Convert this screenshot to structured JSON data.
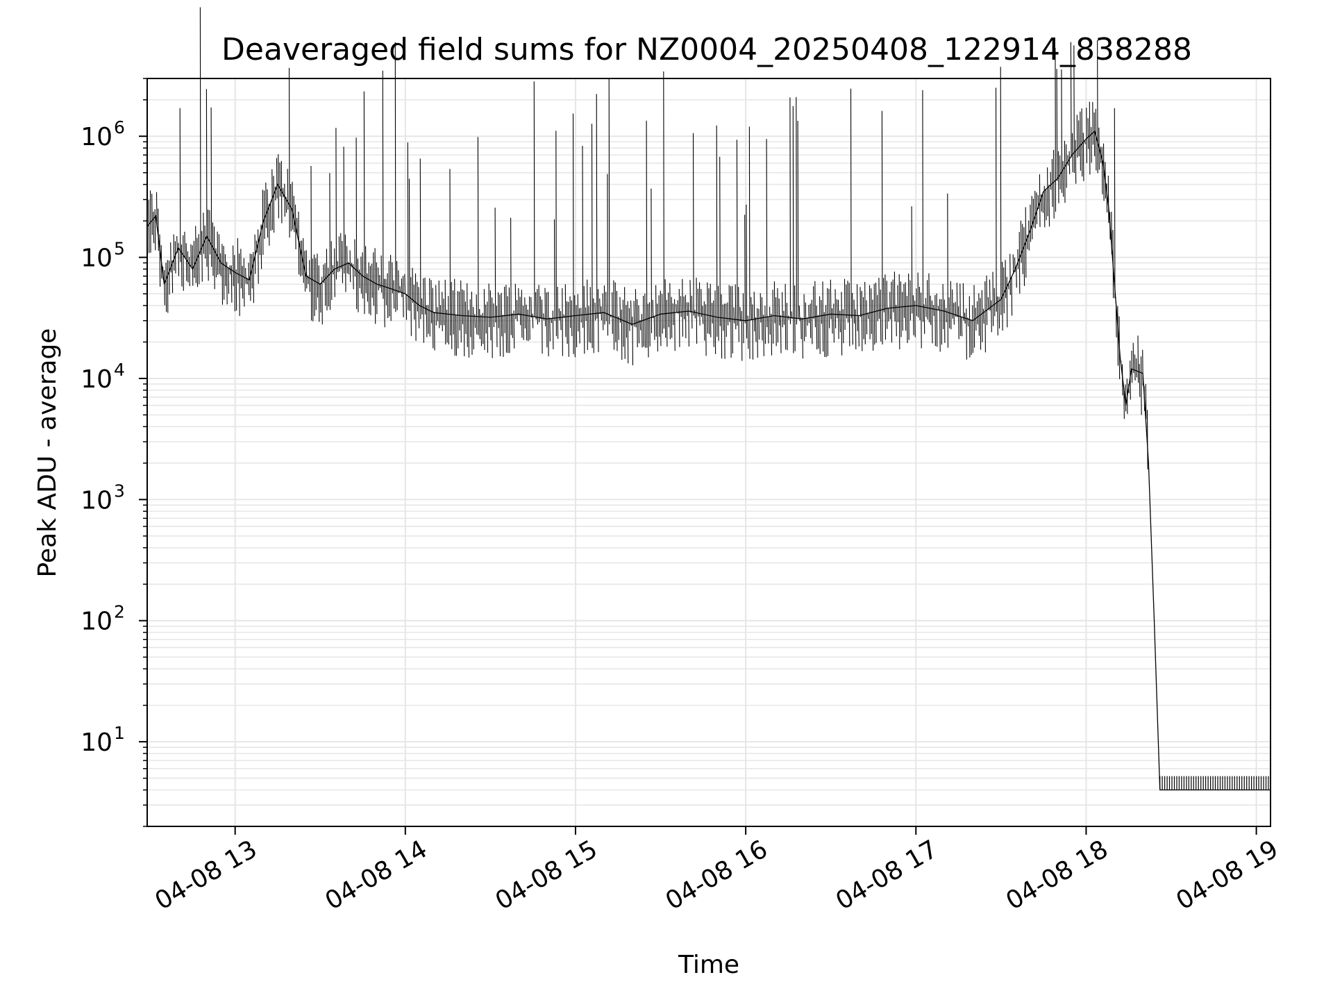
{
  "chart_data": {
    "type": "line",
    "title": "Deaveraged field sums for NZ0004_20250408_122914_838288",
    "xlabel": "Time",
    "ylabel": "Peak ADU - average",
    "yscale": "log",
    "xlim": [
      "04-08 12:29",
      "04-08 19:05"
    ],
    "ylim": [
      2,
      3000000
    ],
    "x_ticks": [
      "04-08 13",
      "04-08 14",
      "04-08 15",
      "04-08 16",
      "04-08 17",
      "04-08 18",
      "04-08 19"
    ],
    "y_ticks": [
      {
        "base": "10",
        "exp": "1",
        "value": 10
      },
      {
        "base": "10",
        "exp": "2",
        "value": 100
      },
      {
        "base": "10",
        "exp": "3",
        "value": 1000
      },
      {
        "base": "10",
        "exp": "4",
        "value": 10000
      },
      {
        "base": "10",
        "exp": "5",
        "value": 100000
      },
      {
        "base": "10",
        "exp": "6",
        "value": 1000000
      }
    ],
    "grid": "major and minor",
    "series": [
      {
        "color": "#000000",
        "points": [
          [
            "04-08 12:29",
            180000
          ],
          [
            "04-08 12:32",
            220000
          ],
          [
            "04-08 12:35",
            60000
          ],
          [
            "04-08 12:40",
            120000
          ],
          [
            "04-08 12:45",
            80000
          ],
          [
            "04-08 12:50",
            150000
          ],
          [
            "04-08 12:55",
            90000
          ],
          [
            "04-08 13:00",
            75000
          ],
          [
            "04-08 13:05",
            65000
          ],
          [
            "04-08 13:10",
            200000
          ],
          [
            "04-08 13:15",
            400000
          ],
          [
            "04-08 13:20",
            250000
          ],
          [
            "04-08 13:25",
            70000
          ],
          [
            "04-08 13:30",
            60000
          ],
          [
            "04-08 13:35",
            80000
          ],
          [
            "04-08 13:40",
            90000
          ],
          [
            "04-08 13:45",
            70000
          ],
          [
            "04-08 13:50",
            60000
          ],
          [
            "04-08 13:55",
            55000
          ],
          [
            "04-08 14:00",
            50000
          ],
          [
            "04-08 14:05",
            40000
          ],
          [
            "04-08 14:10",
            35000
          ],
          [
            "04-08 14:20",
            33000
          ],
          [
            "04-08 14:30",
            32000
          ],
          [
            "04-08 14:40",
            34000
          ],
          [
            "04-08 14:50",
            31000
          ],
          [
            "04-08 15:00",
            33000
          ],
          [
            "04-08 15:10",
            35000
          ],
          [
            "04-08 15:20",
            28000
          ],
          [
            "04-08 15:30",
            34000
          ],
          [
            "04-08 15:40",
            36000
          ],
          [
            "04-08 15:50",
            32000
          ],
          [
            "04-08 16:00",
            30000
          ],
          [
            "04-08 16:10",
            33000
          ],
          [
            "04-08 16:20",
            31000
          ],
          [
            "04-08 16:30",
            34000
          ],
          [
            "04-08 16:40",
            33000
          ],
          [
            "04-08 16:50",
            38000
          ],
          [
            "04-08 17:00",
            40000
          ],
          [
            "04-08 17:10",
            36000
          ],
          [
            "04-08 17:20",
            30000
          ],
          [
            "04-08 17:30",
            45000
          ],
          [
            "04-08 17:35",
            80000
          ],
          [
            "04-08 17:40",
            160000
          ],
          [
            "04-08 17:45",
            350000
          ],
          [
            "04-08 17:50",
            450000
          ],
          [
            "04-08 17:55",
            700000
          ],
          [
            "04-08 18:00",
            950000
          ],
          [
            "04-08 18:03",
            1100000
          ],
          [
            "04-08 18:06",
            600000
          ],
          [
            "04-08 18:08",
            250000
          ],
          [
            "04-08 18:10",
            60000
          ],
          [
            "04-08 18:12",
            15000
          ],
          [
            "04-08 18:14",
            6000
          ],
          [
            "04-08 18:16",
            12000
          ],
          [
            "04-08 18:20",
            11000
          ],
          [
            "04-08 18:22",
            2000
          ],
          [
            "04-08 18:24",
            100
          ],
          [
            "04-08 18:26",
            4
          ],
          [
            "04-08 19:05",
            4
          ]
        ]
      }
    ]
  }
}
